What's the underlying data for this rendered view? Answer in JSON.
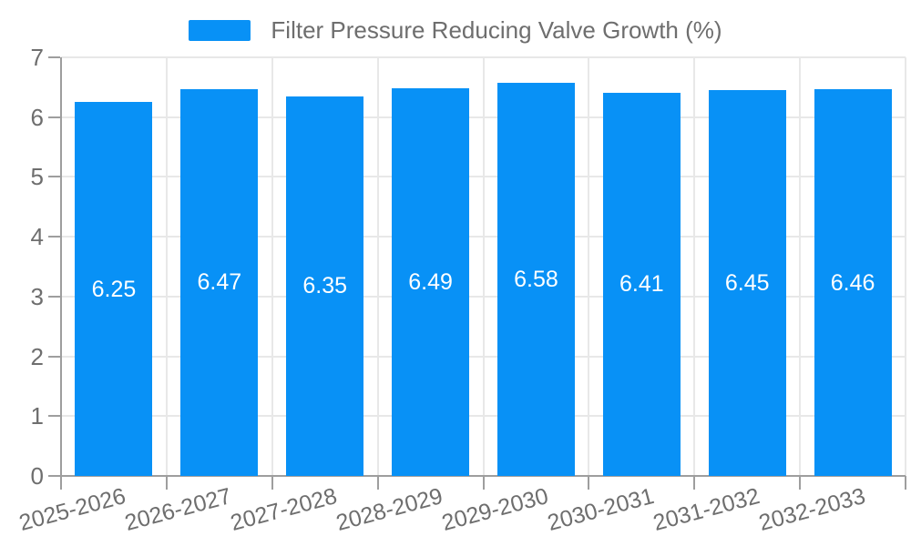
{
  "legend": {
    "label": "Filter Pressure Reducing Valve Growth (%)"
  },
  "colors": {
    "bar": "#0891f6",
    "bar_value_text": "#ffffff",
    "grid_line": "#e8e8e8",
    "axis_line": "#9e9e9e",
    "axis_text": "#6e6e6e",
    "legend_text": "#6e6e6e",
    "background": "#ffffff"
  },
  "chart_data": {
    "type": "bar",
    "title": "",
    "legend_entries": [
      "Filter Pressure Reducing Valve Growth (%)"
    ],
    "legend_position": "top-center",
    "categories": [
      "2025-2026",
      "2026-2027",
      "2027-2028",
      "2028-2029",
      "2029-2030",
      "2030-2031",
      "2031-2032",
      "2032-2033"
    ],
    "values": [
      6.25,
      6.47,
      6.35,
      6.49,
      6.58,
      6.41,
      6.45,
      6.46
    ],
    "value_labels": [
      "6.25",
      "6.47",
      "6.35",
      "6.49",
      "6.58",
      "6.41",
      "6.45",
      "6.46"
    ],
    "xlabel": "",
    "ylabel": "",
    "ylim": [
      0,
      7
    ],
    "yticks": [
      0,
      1,
      2,
      3,
      4,
      5,
      6,
      7
    ],
    "grid": true,
    "x_tick_label_rotation_deg": -15,
    "bar_value_labels_inside": true
  }
}
